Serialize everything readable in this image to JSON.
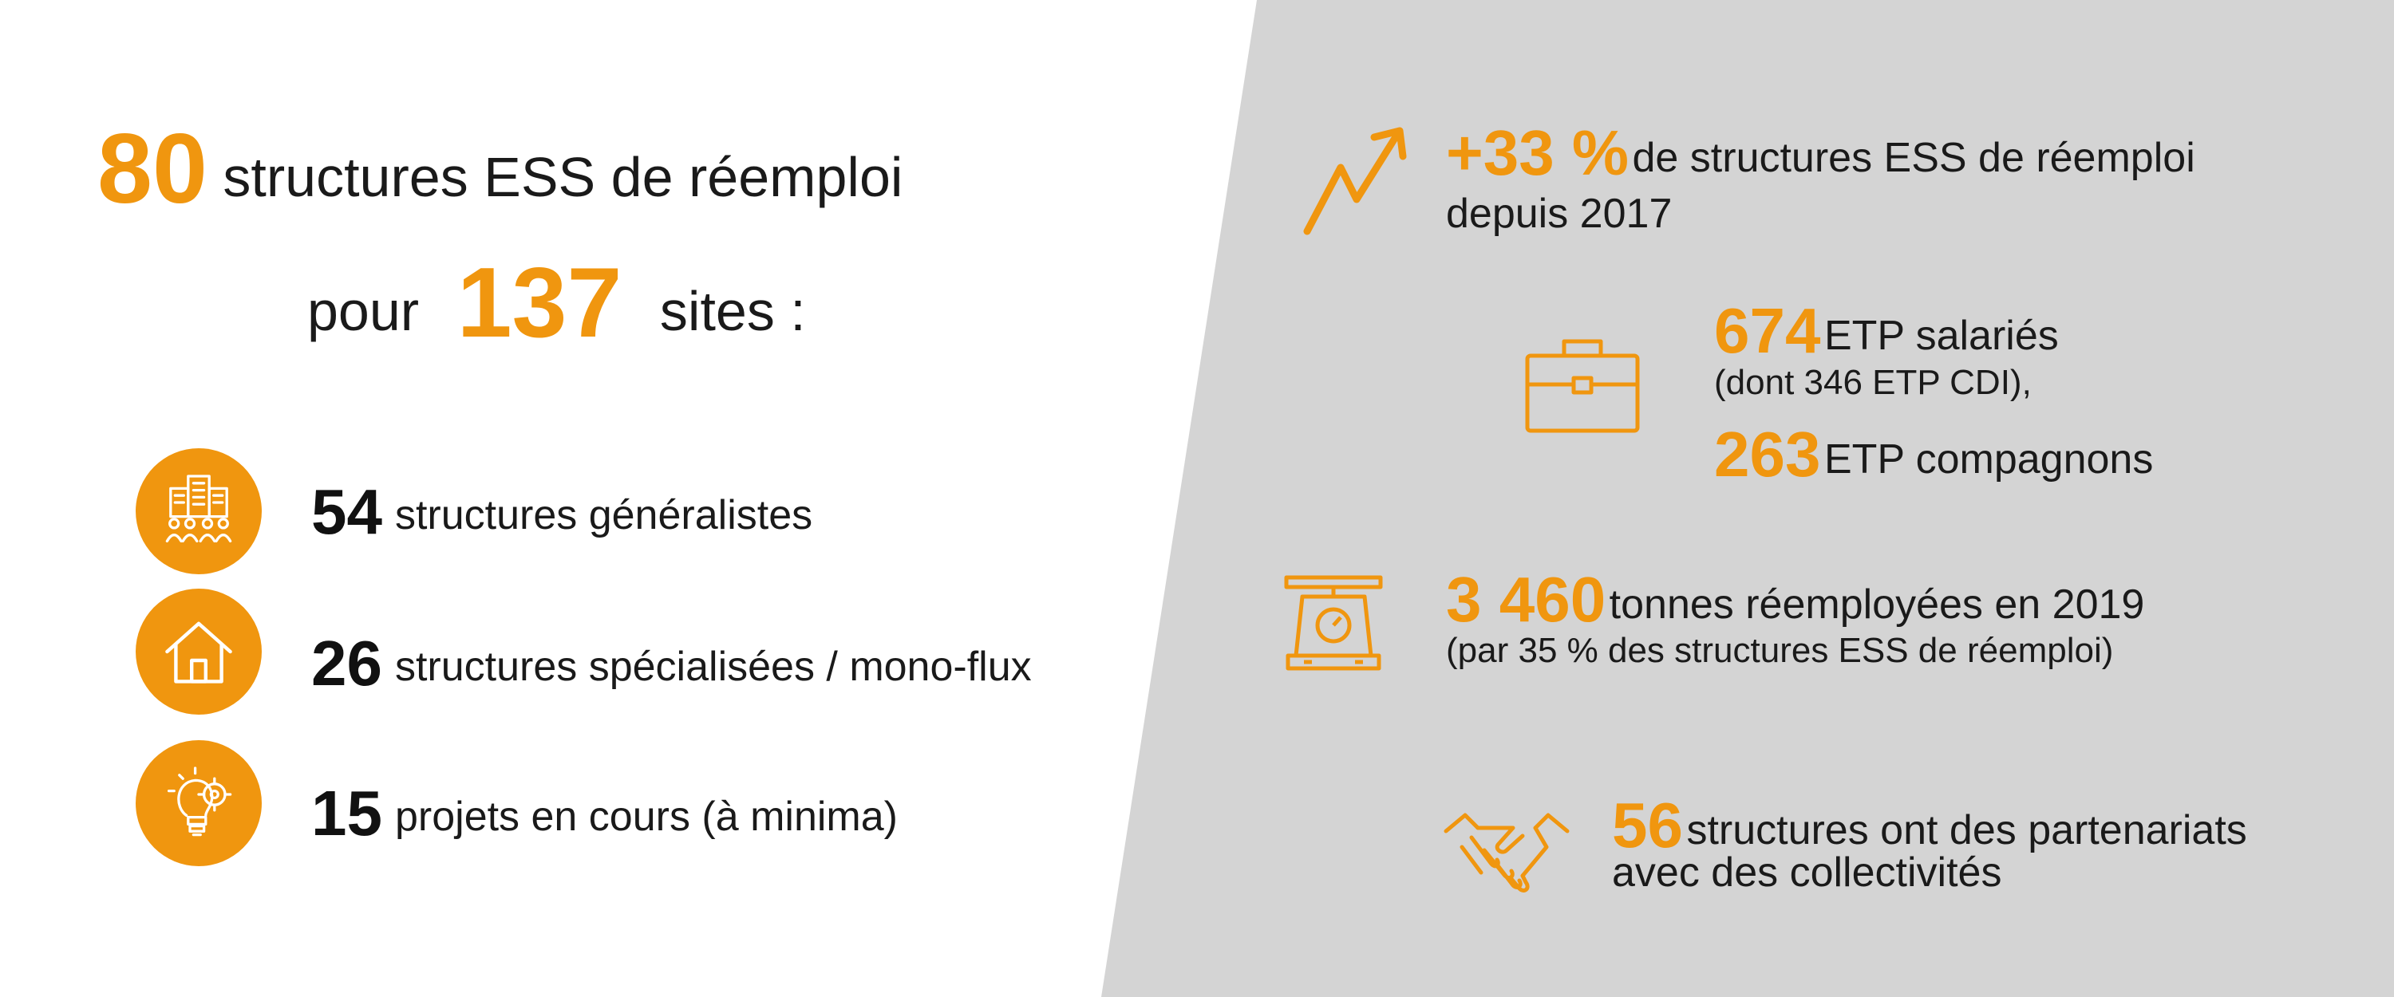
{
  "headline": {
    "count": "80",
    "count_label": "structures ESS de réemploi",
    "prefix": "pour",
    "sites": "137",
    "sites_label": "sites :"
  },
  "left_items": [
    {
      "icon": "building-people-icon",
      "value": "54",
      "label": "structures généralistes"
    },
    {
      "icon": "house-icon",
      "value": "26",
      "label": "structures spécialisées / mono-flux"
    },
    {
      "icon": "lightbulb-gear-icon",
      "value": "15",
      "label": "projets en cours (à minima)"
    }
  ],
  "right_stats": {
    "growth": {
      "icon": "trend-up-arrow-icon",
      "value": "+33 %",
      "label": "de structures ESS de réemploi",
      "line2": "depuis 2017"
    },
    "jobs": {
      "icon": "briefcase-icon",
      "value": "674",
      "label": "ETP salariés",
      "sub": "(dont 346 ETP CDI),",
      "value2": "263",
      "label2": "ETP compagnons"
    },
    "tonnage": {
      "icon": "weighing-scale-icon",
      "value": "3 460",
      "label": "tonnes réemployées en 2019",
      "sub": "(par 35 % des structures ESS de réemploi)"
    },
    "partners": {
      "icon": "handshake-icon",
      "value": "56",
      "label": "structures ont des partenariats",
      "line2": "avec des collectivités"
    }
  },
  "colors": {
    "accent": "#f0960f",
    "panel": "#d4d4d4",
    "text": "#1a1a1a"
  }
}
